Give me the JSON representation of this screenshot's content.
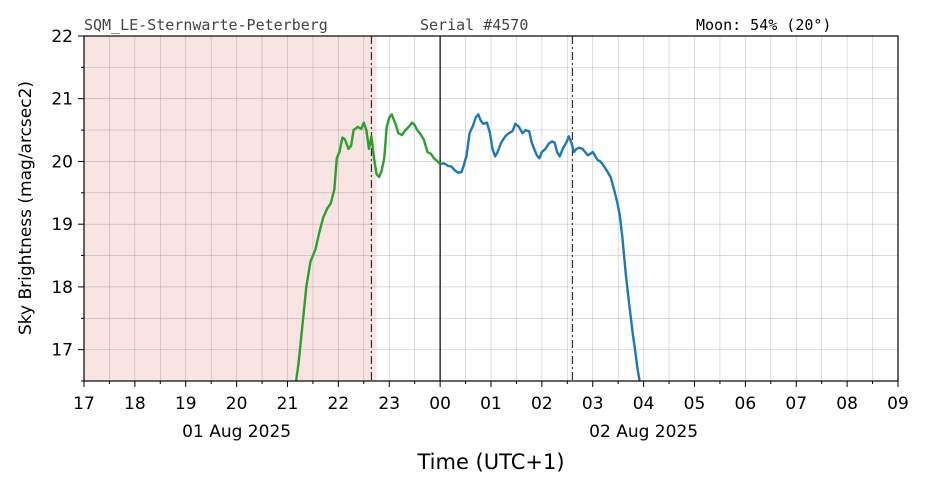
{
  "header": {
    "station": "SQM_LE-Sternwarte-Peterberg",
    "serial": "Serial #4570",
    "moon": "Moon: 54% (20°)"
  },
  "chart_data": {
    "type": "line",
    "xlabel": "Time (UTC+1)",
    "ylabel": "Sky Brightness (mag/arcsec2)",
    "ylim": [
      16.5,
      22
    ],
    "xlim": [
      17,
      33
    ],
    "x_tick_labels": [
      "17",
      "18",
      "19",
      "20",
      "21",
      "22",
      "23",
      "00",
      "01",
      "02",
      "03",
      "04",
      "05",
      "06",
      "07",
      "08",
      "09"
    ],
    "date_labels": [
      {
        "text": "01 Aug 2025",
        "at_hour": 20
      },
      {
        "text": "02 Aug 2025",
        "at_hour": 28
      }
    ],
    "y_ticks": [
      17,
      18,
      19,
      20,
      21,
      22
    ],
    "grid": true,
    "shaded_region": {
      "x": [
        17,
        22.75
      ],
      "color": "#f9e4e4"
    },
    "vertical_lines": [
      {
        "x": 22.65,
        "style": "dashdot"
      },
      {
        "x": 24.0,
        "style": "solid"
      },
      {
        "x": 26.6,
        "style": "dashdot"
      }
    ],
    "series": [
      {
        "color": "#2ca02c",
        "points": [
          [
            21.17,
            16.5
          ],
          [
            21.22,
            16.8
          ],
          [
            21.27,
            17.2
          ],
          [
            21.32,
            17.6
          ],
          [
            21.37,
            18.0
          ],
          [
            21.45,
            18.4
          ],
          [
            21.55,
            18.6
          ],
          [
            21.62,
            18.85
          ],
          [
            21.7,
            19.1
          ],
          [
            21.78,
            19.25
          ],
          [
            21.85,
            19.33
          ],
          [
            21.92,
            19.55
          ],
          [
            21.97,
            20.05
          ],
          [
            22.02,
            20.15
          ],
          [
            22.08,
            20.38
          ],
          [
            22.13,
            20.35
          ],
          [
            22.2,
            20.2
          ],
          [
            22.25,
            20.25
          ],
          [
            22.3,
            20.5
          ],
          [
            22.38,
            20.55
          ],
          [
            22.45,
            20.52
          ],
          [
            22.5,
            20.62
          ],
          [
            22.55,
            20.5
          ],
          [
            22.6,
            20.2
          ],
          [
            22.65,
            20.4
          ],
          [
            22.7,
            20.05
          ],
          [
            22.75,
            19.8
          ],
          [
            22.8,
            19.75
          ],
          [
            22.85,
            19.85
          ],
          [
            22.9,
            20.05
          ],
          [
            22.95,
            20.55
          ],
          [
            23.0,
            20.7
          ],
          [
            23.05,
            20.75
          ],
          [
            23.12,
            20.6
          ],
          [
            23.18,
            20.45
          ],
          [
            23.25,
            20.42
          ],
          [
            23.32,
            20.5
          ],
          [
            23.38,
            20.55
          ],
          [
            23.45,
            20.62
          ],
          [
            23.5,
            20.58
          ],
          [
            23.55,
            20.5
          ],
          [
            23.6,
            20.45
          ],
          [
            23.68,
            20.35
          ],
          [
            23.75,
            20.15
          ],
          [
            23.82,
            20.12
          ],
          [
            23.88,
            20.05
          ],
          [
            23.95,
            20.0
          ],
          [
            24.0,
            19.96
          ]
        ]
      },
      {
        "color": "#1f77b4",
        "points": [
          [
            24.0,
            19.96
          ],
          [
            24.08,
            19.97
          ],
          [
            24.15,
            19.93
          ],
          [
            24.22,
            19.92
          ],
          [
            24.3,
            19.85
          ],
          [
            24.35,
            19.82
          ],
          [
            24.42,
            19.83
          ],
          [
            24.47,
            19.95
          ],
          [
            24.52,
            20.1
          ],
          [
            24.58,
            20.45
          ],
          [
            24.65,
            20.58
          ],
          [
            24.7,
            20.7
          ],
          [
            24.75,
            20.75
          ],
          [
            24.8,
            20.65
          ],
          [
            24.85,
            20.6
          ],
          [
            24.92,
            20.62
          ],
          [
            24.98,
            20.45
          ],
          [
            25.03,
            20.2
          ],
          [
            25.08,
            20.08
          ],
          [
            25.13,
            20.15
          ],
          [
            25.2,
            20.3
          ],
          [
            25.28,
            20.4
          ],
          [
            25.35,
            20.45
          ],
          [
            25.42,
            20.48
          ],
          [
            25.48,
            20.6
          ],
          [
            25.55,
            20.55
          ],
          [
            25.62,
            20.45
          ],
          [
            25.68,
            20.5
          ],
          [
            25.75,
            20.48
          ],
          [
            25.8,
            20.3
          ],
          [
            25.85,
            20.2
          ],
          [
            25.9,
            20.1
          ],
          [
            25.95,
            20.05
          ],
          [
            26.0,
            20.15
          ],
          [
            26.07,
            20.2
          ],
          [
            26.13,
            20.28
          ],
          [
            26.2,
            20.32
          ],
          [
            26.25,
            20.3
          ],
          [
            26.3,
            20.15
          ],
          [
            26.35,
            20.08
          ],
          [
            26.42,
            20.22
          ],
          [
            26.48,
            20.3
          ],
          [
            26.53,
            20.4
          ],
          [
            26.58,
            20.3
          ],
          [
            26.63,
            20.15
          ],
          [
            26.68,
            20.2
          ],
          [
            26.73,
            20.22
          ],
          [
            26.8,
            20.2
          ],
          [
            26.85,
            20.15
          ],
          [
            26.9,
            20.1
          ],
          [
            26.95,
            20.12
          ],
          [
            27.0,
            20.15
          ],
          [
            27.05,
            20.08
          ],
          [
            27.1,
            20.02
          ],
          [
            27.15,
            20.0
          ],
          [
            27.2,
            19.95
          ],
          [
            27.28,
            19.85
          ],
          [
            27.35,
            19.75
          ],
          [
            27.42,
            19.55
          ],
          [
            27.48,
            19.35
          ],
          [
            27.53,
            19.15
          ],
          [
            27.58,
            18.8
          ],
          [
            27.65,
            18.2
          ],
          [
            27.72,
            17.7
          ],
          [
            27.78,
            17.3
          ],
          [
            27.83,
            17.0
          ],
          [
            27.88,
            16.7
          ],
          [
            27.92,
            16.5
          ]
        ]
      }
    ]
  }
}
